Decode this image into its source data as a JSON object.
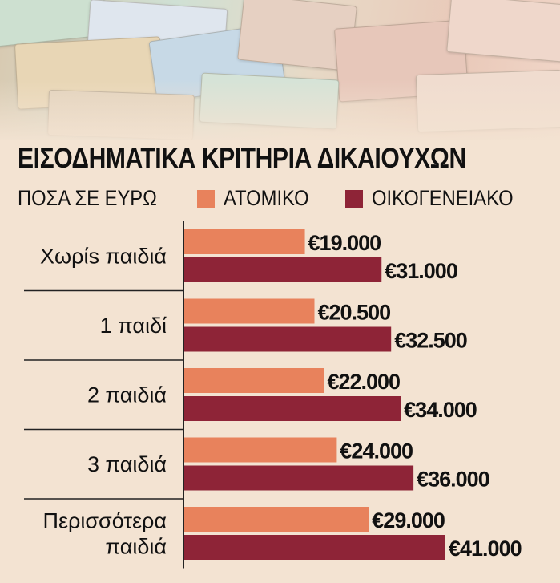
{
  "chart_data": {
    "type": "bar",
    "orientation": "horizontal",
    "title": "ΕΙΣΟΔΗΜΑΤΙΚΑ ΚΡΙΤΗΡΙΑ ΔΙΚΑΙΟΥΧΩΝ",
    "subtitle": "ΠΟΣΑ ΣΕ ΕΥΡΩ",
    "categories": [
      [
        "Χωρίs παιδιά"
      ],
      [
        "1 παιδί"
      ],
      [
        "2 παιδιά"
      ],
      [
        "3 παιδιά"
      ],
      [
        "Περισσότερα",
        "παιδιά"
      ]
    ],
    "series": [
      {
        "name": "ΑΤΟΜΙΚΟ",
        "color": "#e8825c",
        "values": [
          19000,
          20500,
          22000,
          24000,
          29000
        ],
        "labels": [
          "€19.000",
          "€20.500",
          "€22.000",
          "€24.000",
          "€29.000"
        ]
      },
      {
        "name": "ΟΙΚΟΓΕΝΕΙΑΚΟ",
        "color": "#8e2437",
        "values": [
          31000,
          32500,
          34000,
          36000,
          41000
        ],
        "labels": [
          "€31.000",
          "€32.500",
          "€34.000",
          "€36.000",
          "€41.000"
        ]
      }
    ],
    "legend_position": "top",
    "grid": false
  }
}
